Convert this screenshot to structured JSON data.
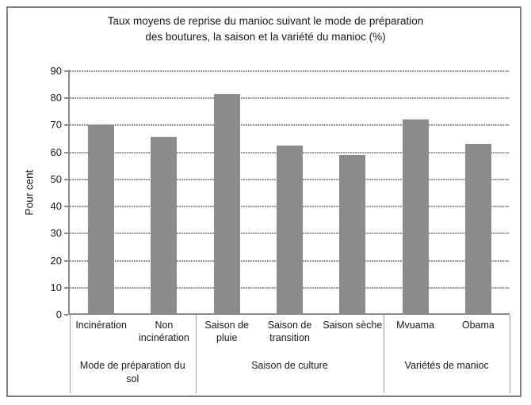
{
  "figure": {
    "background": "#ffffff",
    "border_color": "#808080"
  },
  "chart_data": {
    "type": "bar",
    "title": "Taux moyens de reprise du manioc suivant le mode de préparation des boutures, la saison et la variété du manioc (%)",
    "title_lines": [
      "Taux moyens de reprise du manioc suivant le mode de préparation",
      "des boutures, la saison et la variété du manioc (%)"
    ],
    "ylabel": "Pour cent",
    "xlabel": "",
    "ylim": [
      0,
      90
    ],
    "ytick_step": 10,
    "ytick_labels": [
      "0",
      "10",
      "20",
      "30",
      "40",
      "50",
      "60",
      "70",
      "80",
      "90"
    ],
    "grid": true,
    "legend": "none",
    "bar_color": "#8b8b8b",
    "gridline_color": "#9d9d9d",
    "axis_color": "#8c8c8c",
    "text_color": "#1a1a1a",
    "groups": [
      {
        "label": "Mode de préparation du sol",
        "categories": [
          "Incinération",
          "Non incinération"
        ],
        "values": [
          70,
          65.8
        ]
      },
      {
        "label": "Saison de culture",
        "categories": [
          "Saison de pluie",
          "Saison de transition",
          "Saison sèche"
        ],
        "values": [
          81.5,
          62.5,
          59
        ]
      },
      {
        "label": "Variétés de manioc",
        "categories": [
          "Mvuama",
          "Obama"
        ],
        "values": [
          72.3,
          63.2
        ]
      }
    ]
  }
}
